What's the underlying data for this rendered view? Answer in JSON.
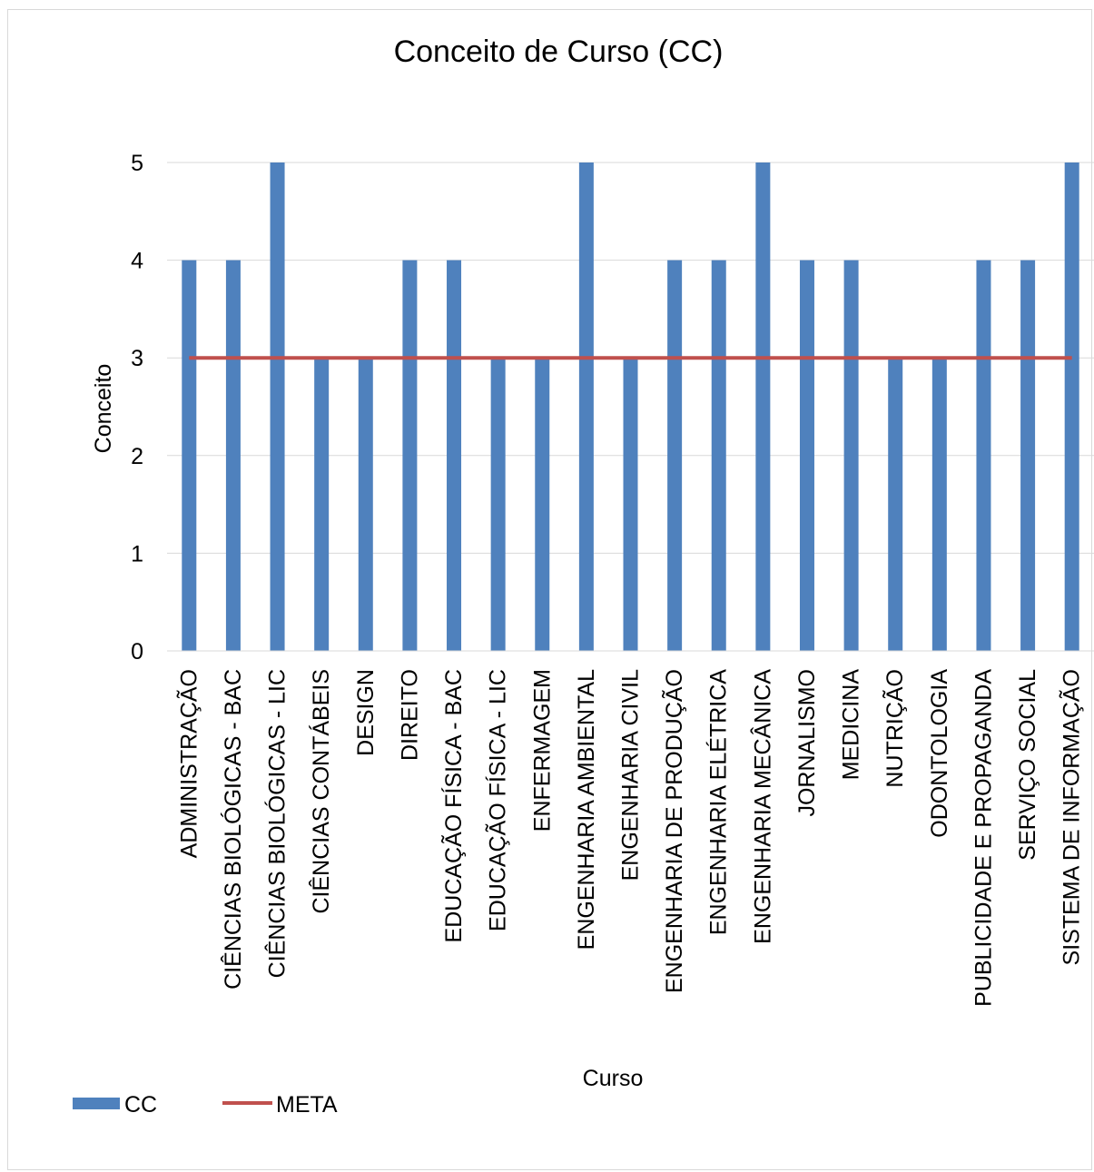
{
  "chart_data": {
    "type": "bar",
    "title": "Conceito de Curso (CC)",
    "xlabel": "Curso",
    "ylabel": "Conceito",
    "ylim": [
      0,
      5
    ],
    "yticks": [
      "0",
      "1",
      "2",
      "3",
      "4",
      "5"
    ],
    "grid": true,
    "legend_position": "bottom-left",
    "categories": [
      "ADMINISTRAÇÃO",
      "CIÊNCIAS BIOLÓGICAS - BAC",
      "CIÊNCIAS BIOLÓGICAS - LIC",
      "CIÊNCIAS CONTÁBEIS",
      "DESIGN",
      "DIREITO",
      "EDUCAÇÃO FÍSICA - BAC",
      "EDUCAÇÃO FÍSICA - LIC",
      "ENFERMAGEM",
      "ENGENHARIA AMBIENTAL",
      "ENGENHARIA CIVIL",
      "ENGENHARIA DE PRODUÇÃO",
      "ENGENHARIA ELÉTRICA",
      "ENGENHARIA MECÂNICA",
      "JORNALISMO",
      "MEDICINA",
      "NUTRIÇÃO",
      "ODONTOLOGIA",
      "PUBLICIDADE E PROPAGANDA",
      "SERVIÇO SOCIAL",
      "SISTEMA DE INFORMAÇÃO"
    ],
    "series": [
      {
        "name": "CC",
        "type": "bar",
        "color": "#4f81bd",
        "values": [
          4,
          4,
          5,
          3,
          3,
          4,
          4,
          3,
          3,
          5,
          3,
          4,
          4,
          5,
          4,
          4,
          3,
          3,
          4,
          4,
          5
        ]
      },
      {
        "name": "META",
        "type": "line",
        "color": "#c0504d",
        "values": [
          3,
          3,
          3,
          3,
          3,
          3,
          3,
          3,
          3,
          3,
          3,
          3,
          3,
          3,
          3,
          3,
          3,
          3,
          3,
          3,
          3
        ]
      }
    ]
  }
}
